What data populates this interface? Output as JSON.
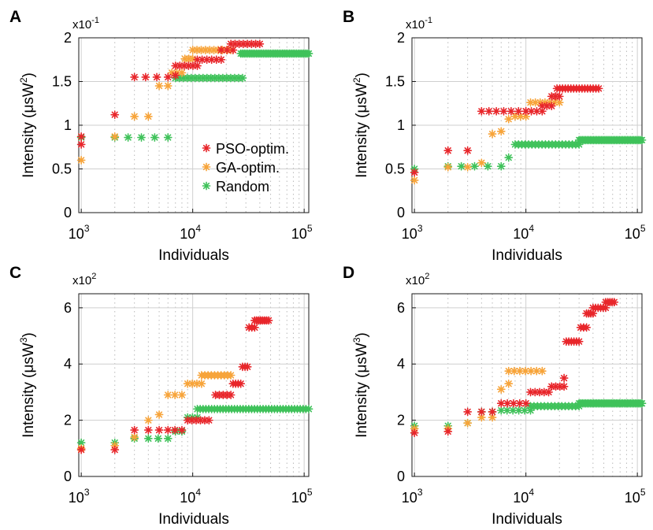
{
  "colors": {
    "pso": "#e8262b",
    "ga": "#f7a43a",
    "random": "#3fc25a"
  },
  "legend": [
    "PSO-optim.",
    "GA-optim.",
    "Random"
  ],
  "chart_data": [
    {
      "type": "scatter",
      "panel": "A",
      "xlabel": "Individuals",
      "ylabel": "Intensity (μsW2)",
      "ylabel_base": "Intensity (μsW",
      "ylabel_sup": "2",
      "ylabel_end": ")",
      "multiplier_base": "x10",
      "multiplier_exp": "-1",
      "x_scale": "log",
      "xlim": [
        950,
        110000
      ],
      "ylim": [
        0,
        2
      ],
      "yticks": [
        "0",
        "0.5",
        "1",
        "1.5",
        "2"
      ],
      "xticks": [
        {
          "base": "10",
          "exp": "3"
        },
        {
          "base": "10",
          "exp": "4"
        },
        {
          "base": "10",
          "exp": "5"
        }
      ],
      "grid": true,
      "legend_position": "right",
      "series": [
        {
          "name": "PSO-optim.",
          "segments": [
            [
              1000,
              1000,
              1,
              0.87
            ],
            [
              1000,
              1000,
              1,
              0.78
            ],
            [
              2000,
              2000,
              1,
              1.12
            ],
            [
              3000,
              6000,
              4,
              1.55
            ],
            [
              7000,
              7000,
              1,
              1.57
            ],
            [
              7000,
              11000,
              6,
              1.68
            ],
            [
              11000,
              18000,
              6,
              1.75
            ],
            [
              18000,
              23000,
              3,
              1.86
            ],
            [
              22000,
              40000,
              8,
              1.93
            ]
          ]
        },
        {
          "name": "GA-optim.",
          "segments": [
            [
              1000,
              1000,
              1,
              0.6
            ],
            [
              2000,
              2000,
              1,
              0.87
            ],
            [
              3000,
              4000,
              2,
              1.1
            ],
            [
              5000,
              6000,
              2,
              1.45
            ],
            [
              6500,
              8000,
              3,
              1.6
            ],
            [
              8500,
              10000,
              3,
              1.76
            ],
            [
              10000,
              22000,
              10,
              1.86
            ]
          ]
        },
        {
          "name": "Random",
          "segments": [
            [
              1000,
              1000,
              1,
              0.86
            ],
            [
              2000,
              6000,
              5,
              0.86
            ],
            [
              7000,
              28000,
              18,
              1.54
            ],
            [
              27000,
              110000,
              40,
              1.82
            ]
          ]
        }
      ]
    },
    {
      "type": "scatter",
      "panel": "B",
      "xlabel": "Individuals",
      "ylabel": "Intensity (μsW2)",
      "ylabel_base": "Intensity (μsW",
      "ylabel_sup": "2",
      "ylabel_end": ")",
      "multiplier_base": "x10",
      "multiplier_exp": "-1",
      "x_scale": "log",
      "xlim": [
        950,
        110000
      ],
      "ylim": [
        0,
        2
      ],
      "yticks": [
        "0",
        "0.5",
        "1",
        "1.5",
        "2"
      ],
      "xticks": [
        {
          "base": "10",
          "exp": "3"
        },
        {
          "base": "10",
          "exp": "4"
        },
        {
          "base": "10",
          "exp": "5"
        }
      ],
      "grid": true,
      "series": [
        {
          "name": "PSO-optim.",
          "segments": [
            [
              1000,
              1000,
              1,
              0.46
            ],
            [
              2000,
              2000,
              1,
              0.71
            ],
            [
              3000,
              3000,
              1,
              0.71
            ],
            [
              4000,
              10000,
              7,
              1.16
            ],
            [
              10000,
              14000,
              4,
              1.16
            ],
            [
              14000,
              17000,
              3,
              1.22
            ],
            [
              17000,
              20000,
              3,
              1.33
            ],
            [
              19000,
              45000,
              16,
              1.42
            ]
          ]
        },
        {
          "name": "GA-optim.",
          "segments": [
            [
              1000,
              1000,
              1,
              0.37
            ],
            [
              2000,
              2000,
              1,
              0.52
            ],
            [
              3000,
              3000,
              1,
              0.52
            ],
            [
              4000,
              4000,
              1,
              0.57
            ],
            [
              5000,
              5000,
              1,
              0.9
            ],
            [
              6000,
              6000,
              1,
              0.93
            ],
            [
              7000,
              7000,
              1,
              1.07
            ],
            [
              8000,
              10000,
              3,
              1.1
            ],
            [
              11000,
              20000,
              7,
              1.26
            ]
          ]
        },
        {
          "name": "Random",
          "segments": [
            [
              1000,
              1000,
              1,
              0.5
            ],
            [
              2000,
              6000,
              5,
              0.53
            ],
            [
              7000,
              7000,
              1,
              0.63
            ],
            [
              8000,
              30000,
              20,
              0.78
            ],
            [
              30000,
              110000,
              40,
              0.83
            ]
          ]
        }
      ]
    },
    {
      "type": "scatter",
      "panel": "C",
      "xlabel": "Individuals",
      "ylabel": "Intensity (μsW3)",
      "ylabel_base": "Intensity (μsW",
      "ylabel_sup": "3",
      "ylabel_end": ")",
      "multiplier_base": "x10",
      "multiplier_exp": "2",
      "x_scale": "log",
      "xlim": [
        950,
        110000
      ],
      "ylim": [
        0,
        6.5
      ],
      "yticks": [
        "0",
        "2",
        "4",
        "6"
      ],
      "xticks": [
        {
          "base": "10",
          "exp": "3"
        },
        {
          "base": "10",
          "exp": "4"
        },
        {
          "base": "10",
          "exp": "5"
        }
      ],
      "grid": true,
      "series": [
        {
          "name": "PSO-optim.",
          "segments": [
            [
              1000,
              1000,
              1,
              0.95
            ],
            [
              2000,
              2000,
              1,
              0.95
            ],
            [
              3000,
              3000,
              1,
              1.65
            ],
            [
              4000,
              5000,
              2,
              1.65
            ],
            [
              6000,
              8000,
              3,
              1.65
            ],
            [
              9000,
              14000,
              6,
              2.0
            ],
            [
              16000,
              22000,
              5,
              2.9
            ],
            [
              23000,
              27000,
              4,
              3.3
            ],
            [
              28000,
              31000,
              3,
              3.9
            ],
            [
              32000,
              36000,
              3,
              5.3
            ],
            [
              36000,
              48000,
              8,
              5.55
            ]
          ]
        },
        {
          "name": "GA-optim.",
          "segments": [
            [
              1000,
              1000,
              1,
              1.0
            ],
            [
              2000,
              2000,
              1,
              1.1
            ],
            [
              3000,
              3000,
              1,
              1.4
            ],
            [
              4000,
              4000,
              1,
              2.0
            ],
            [
              5000,
              5000,
              1,
              2.2
            ],
            [
              6000,
              8000,
              3,
              2.9
            ],
            [
              9000,
              12000,
              4,
              3.3
            ],
            [
              12000,
              22000,
              10,
              3.6
            ]
          ]
        },
        {
          "name": "Random",
          "segments": [
            [
              1000,
              1000,
              1,
              1.2
            ],
            [
              2000,
              2000,
              1,
              1.2
            ],
            [
              3000,
              3000,
              1,
              1.35
            ],
            [
              4000,
              6000,
              3,
              1.35
            ],
            [
              7000,
              8000,
              2,
              1.6
            ],
            [
              9000,
              11000,
              3,
              2.1
            ],
            [
              11000,
              110000,
              40,
              2.4
            ]
          ]
        }
      ]
    },
    {
      "type": "scatter",
      "panel": "D",
      "xlabel": "Individuals",
      "ylabel": "Intensity (μsW3)",
      "ylabel_base": "Intensity (μsW",
      "ylabel_sup": "3",
      "ylabel_end": ")",
      "multiplier_base": "x10",
      "multiplier_exp": "2",
      "x_scale": "log",
      "xlim": [
        950,
        110000
      ],
      "ylim": [
        0,
        6.5
      ],
      "yticks": [
        "0",
        "2",
        "4",
        "6"
      ],
      "xticks": [
        {
          "base": "10",
          "exp": "3"
        },
        {
          "base": "10",
          "exp": "4"
        },
        {
          "base": "10",
          "exp": "5"
        }
      ],
      "grid": true,
      "series": [
        {
          "name": "PSO-optim.",
          "segments": [
            [
              1000,
              1000,
              1,
              1.55
            ],
            [
              2000,
              2000,
              1,
              1.6
            ],
            [
              3000,
              3000,
              1,
              2.3
            ],
            [
              4000,
              5000,
              2,
              2.3
            ],
            [
              6000,
              10000,
              5,
              2.6
            ],
            [
              11000,
              16000,
              5,
              3.0
            ],
            [
              17000,
              22000,
              4,
              3.2
            ],
            [
              22000,
              22000,
              1,
              3.5
            ],
            [
              23000,
              30000,
              6,
              4.8
            ],
            [
              31000,
              35000,
              3,
              5.3
            ],
            [
              35000,
              40000,
              4,
              5.8
            ],
            [
              40000,
              52000,
              6,
              6.0
            ],
            [
              52000,
              62000,
              5,
              6.2
            ]
          ]
        },
        {
          "name": "GA-optim.",
          "segments": [
            [
              1000,
              1000,
              1,
              1.7
            ],
            [
              2000,
              2000,
              1,
              1.7
            ],
            [
              3000,
              3000,
              1,
              1.9
            ],
            [
              4000,
              4000,
              1,
              2.1
            ],
            [
              5000,
              5000,
              1,
              2.1
            ],
            [
              6000,
              6000,
              1,
              3.1
            ],
            [
              7000,
              7000,
              1,
              3.3
            ],
            [
              7000,
              14000,
              7,
              3.75
            ]
          ]
        },
        {
          "name": "Random",
          "segments": [
            [
              1000,
              1000,
              1,
              1.8
            ],
            [
              2000,
              2000,
              1,
              1.8
            ],
            [
              3000,
              3000,
              1,
              1.9
            ],
            [
              4000,
              5000,
              2,
              2.3
            ],
            [
              6000,
              11000,
              6,
              2.35
            ],
            [
              11000,
              30000,
              15,
              2.5
            ],
            [
              30000,
              110000,
              40,
              2.6
            ]
          ]
        }
      ]
    }
  ]
}
